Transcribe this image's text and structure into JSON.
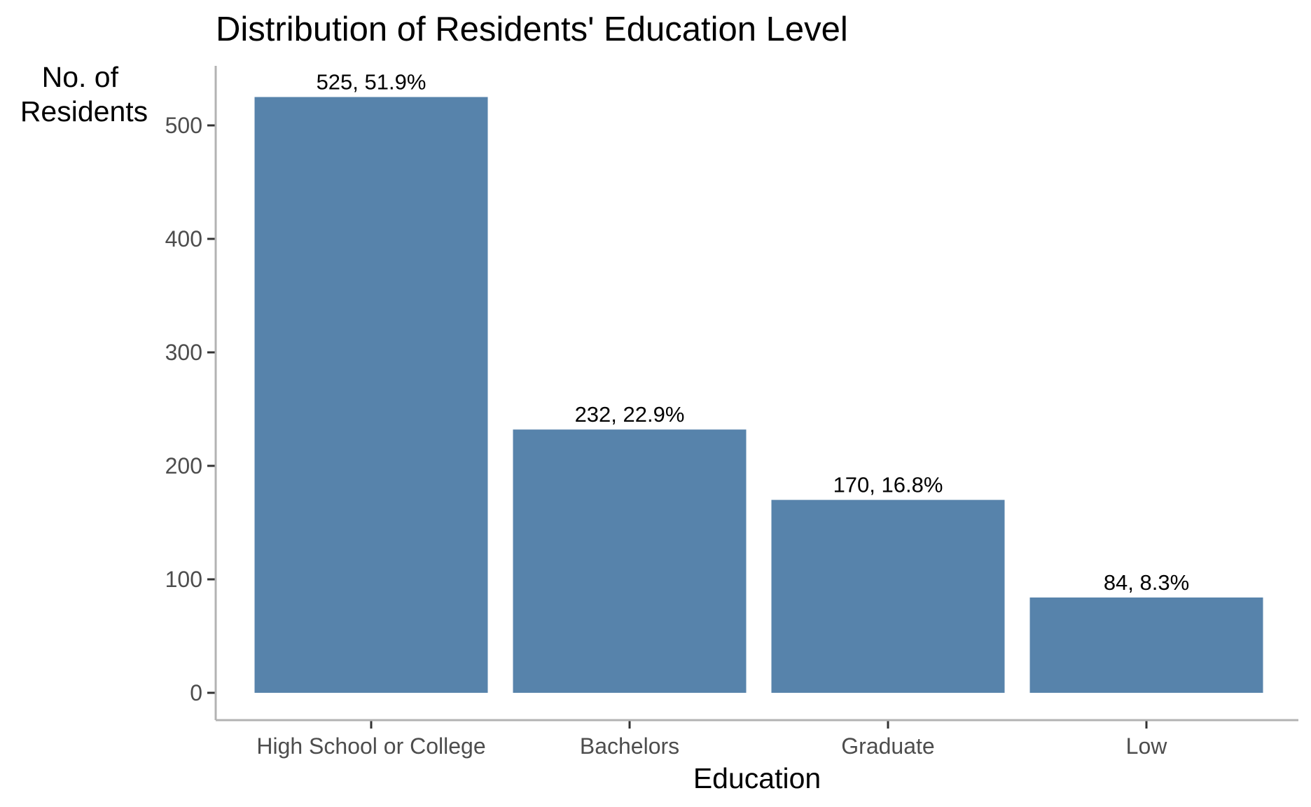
{
  "chart_data": {
    "type": "bar",
    "title": "Distribution of Residents' Education Level",
    "xlabel": "Education",
    "ylabel_lines": [
      "No. of",
      "Residents"
    ],
    "categories": [
      "High School or College",
      "Bachelors",
      "Graduate",
      "Low"
    ],
    "values": [
      525,
      232,
      170,
      84
    ],
    "data_labels": [
      "525, 51.9%",
      "232, 22.9%",
      "170, 16.8%",
      "84, 8.3%"
    ],
    "ylim": [
      0,
      550
    ],
    "yticks": [
      0,
      100,
      200,
      300,
      400,
      500
    ],
    "ytick_labels": [
      "0",
      "100",
      "200",
      "300",
      "400",
      "500"
    ],
    "grid": false,
    "legend": "none",
    "bar_color": "#5783AB",
    "axis_color": "#B3B3B3"
  }
}
